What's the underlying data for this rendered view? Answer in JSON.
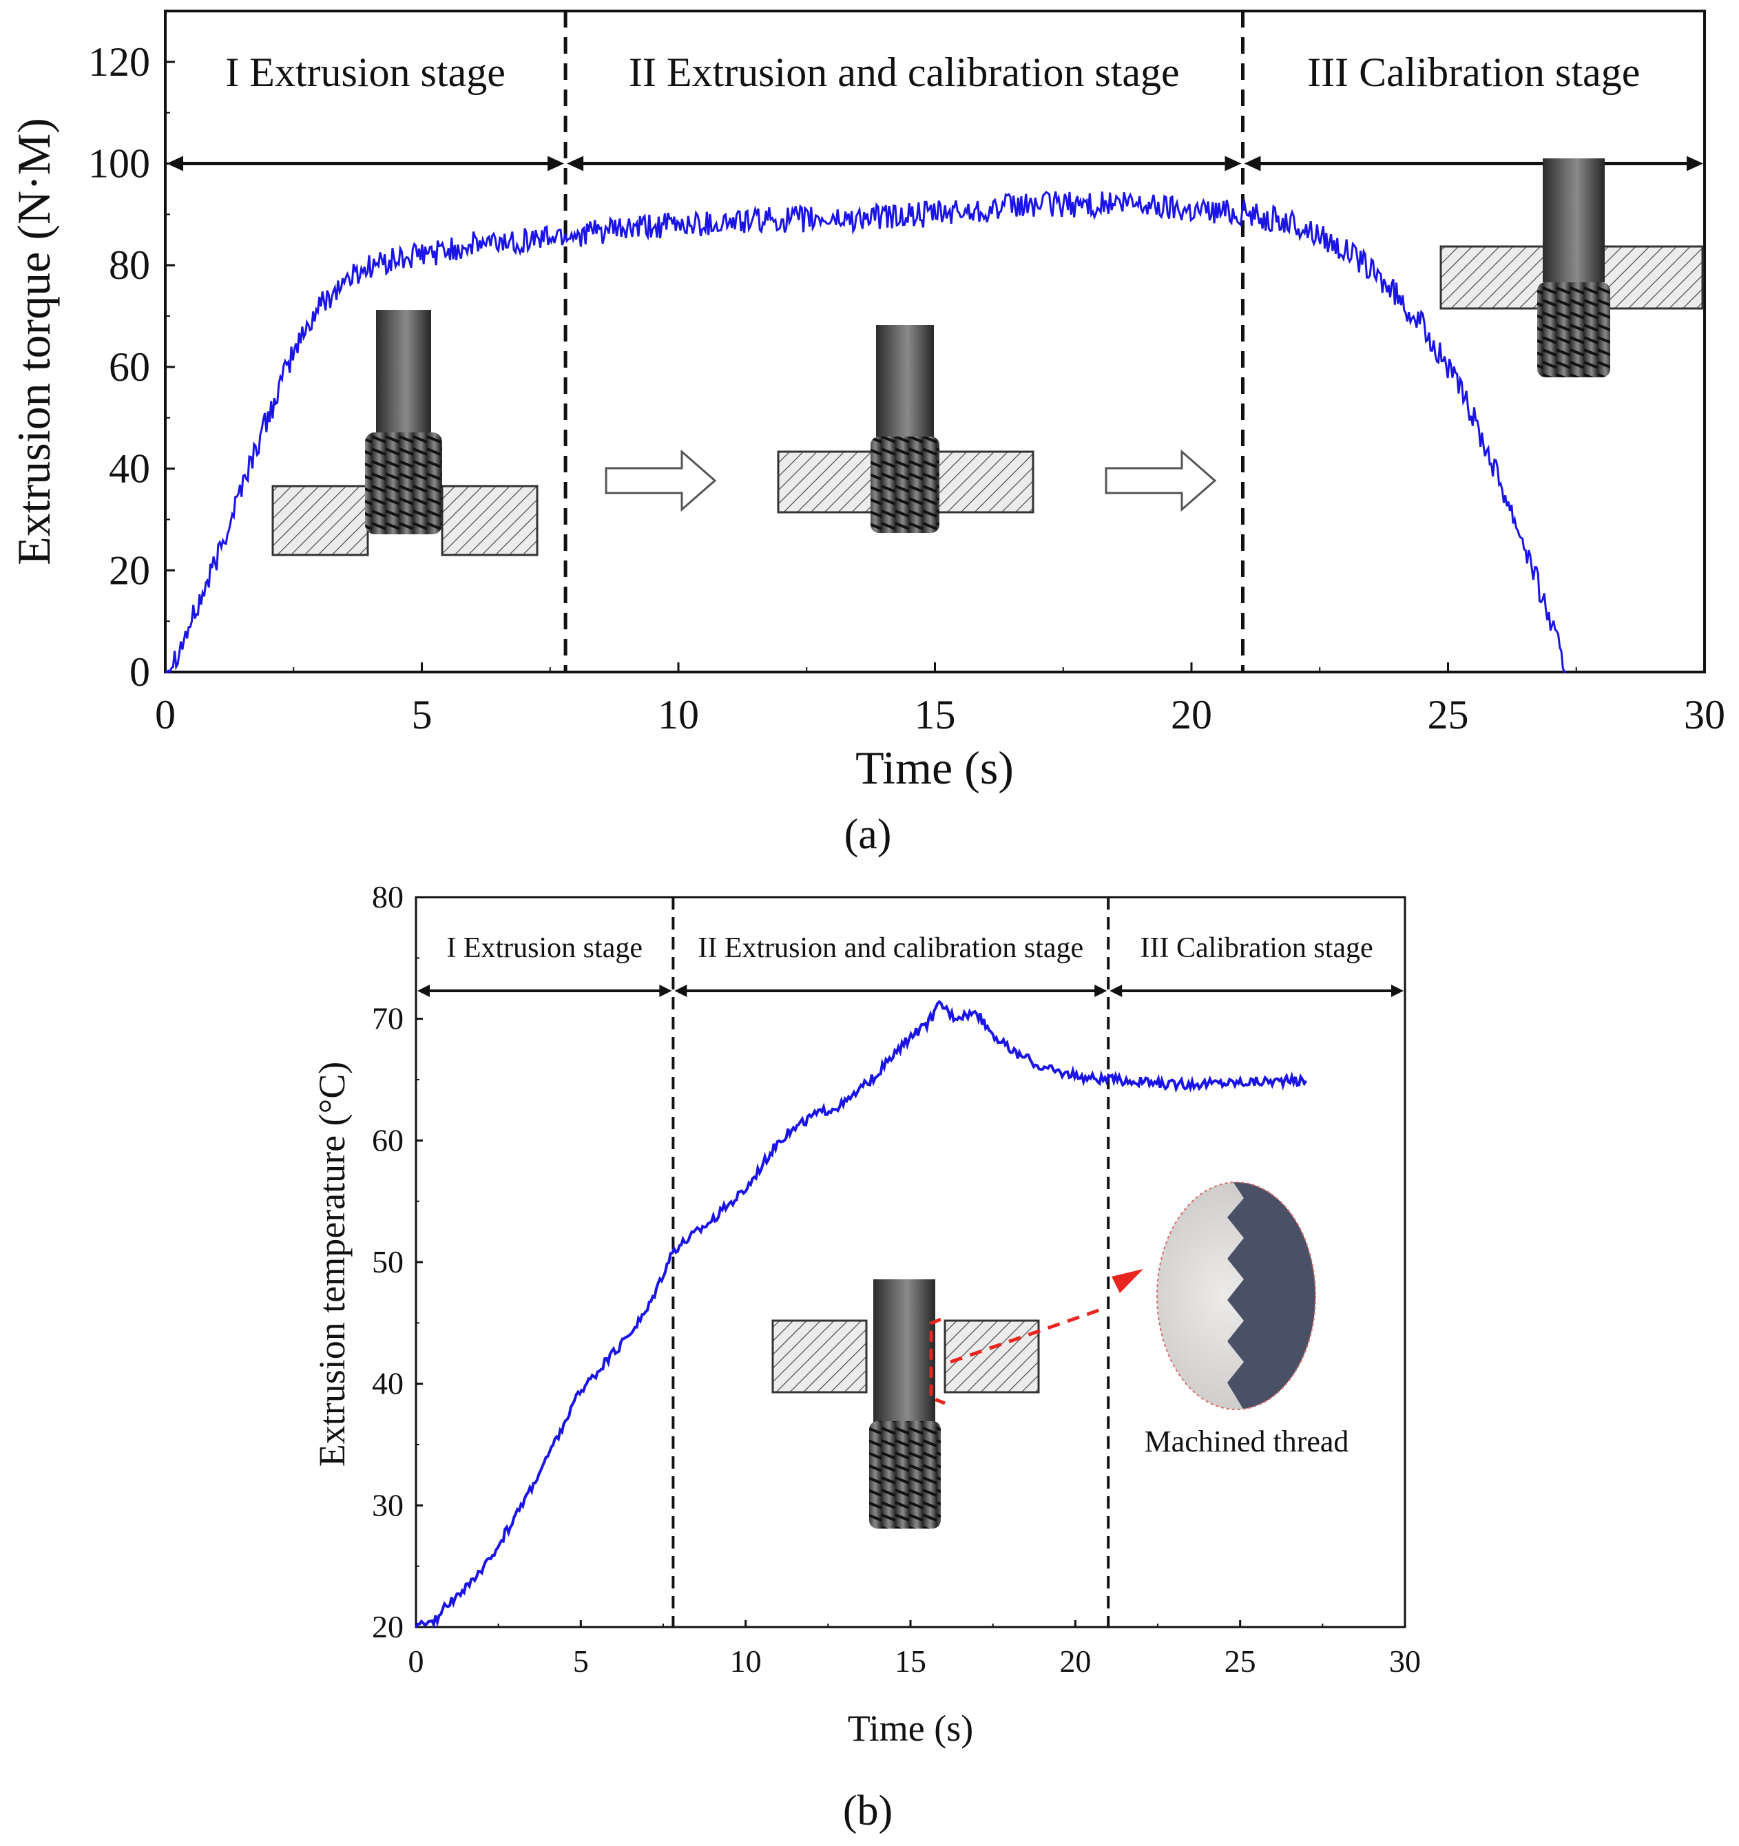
{
  "colors": {
    "series": "#1a14e6",
    "axis": "#111111",
    "arrow_red": "#e8261f"
  },
  "chart_data": [
    {
      "id": "a",
      "type": "line",
      "caption": "(a)",
      "xlabel": "Time (s)",
      "ylabel": "Extrusion torque (N·M)",
      "xlim": [
        0,
        30
      ],
      "ylim": [
        0,
        130
      ],
      "xticks": [
        "0",
        "5",
        "10",
        "15",
        "20",
        "25",
        "30"
      ],
      "yticks": [
        "0",
        "20",
        "40",
        "60",
        "80",
        "100",
        "120"
      ],
      "stage_dividers": [
        7.8,
        21
      ],
      "stage_arrow_y": 100,
      "stages": [
        {
          "label": "I Extrusion stage",
          "x": 3.9
        },
        {
          "label": "II Extrusion and calibration stage",
          "x": 14.4
        },
        {
          "label": "III  Calibration stage",
          "x": 25.5
        }
      ],
      "series": [
        {
          "name": "Extrusion torque",
          "x": [
            0,
            0.3,
            0.6,
            1,
            1.5,
            2,
            2.5,
            3,
            3.5,
            4,
            5,
            6,
            7,
            7.8,
            9,
            10,
            11,
            12,
            13,
            14,
            15,
            16,
            17,
            18,
            19,
            20,
            21,
            22,
            22.5,
            23,
            23.5,
            24,
            24.5,
            25,
            25.5,
            26,
            26.5,
            27,
            27.3
          ],
          "y": [
            0,
            5,
            12,
            22,
            37,
            50,
            63,
            72,
            77,
            80,
            82,
            84,
            85,
            86,
            87,
            88,
            88.5,
            89,
            89,
            89.5,
            90,
            91,
            92,
            92,
            92,
            91,
            90.5,
            88,
            86,
            83,
            79,
            74,
            68,
            60,
            50,
            38,
            25,
            10,
            0
          ],
          "noise": 2.6
        }
      ],
      "insets": [
        "tap-entering-workpiece",
        "tap-through-workpiece",
        "tap-emerging-workpiece",
        "right-arrow",
        "right-arrow"
      ]
    },
    {
      "id": "b",
      "type": "line",
      "caption": "(b)",
      "xlabel": "Time (s)",
      "ylabel": "Extrusion temperature (°C)",
      "xlim": [
        0,
        30
      ],
      "ylim": [
        20,
        80
      ],
      "xticks": [
        "0",
        "5",
        "10",
        "15",
        "20",
        "25",
        "30"
      ],
      "yticks": [
        "20",
        "30",
        "40",
        "50",
        "60",
        "70",
        "80"
      ],
      "stage_dividers": [
        7.8,
        21
      ],
      "stage_arrow_y": 72.3,
      "stages": [
        {
          "label": "I  Extrusion stage",
          "x": 3.9
        },
        {
          "label": "II  Extrusion and calibration stage",
          "x": 14.4
        },
        {
          "label": "III Calibration stage",
          "x": 25.5
        }
      ],
      "series": [
        {
          "name": "Extrusion temperature",
          "x": [
            0,
            0.5,
            1,
            2,
            3,
            4,
            5,
            6,
            7,
            7.8,
            9,
            10,
            11,
            12,
            13,
            14,
            15,
            15.5,
            15.9,
            16.3,
            17,
            17.5,
            18,
            19,
            20,
            21,
            22,
            23,
            24,
            25,
            26,
            27
          ],
          "y": [
            20,
            20.3,
            22,
            24.5,
            29,
            34,
            39.5,
            42.5,
            46,
            51,
            53.5,
            56,
            60,
            62,
            63,
            65.5,
            68.5,
            69.5,
            71.3,
            70.2,
            70.5,
            68.8,
            67.5,
            66,
            65.3,
            65,
            64.8,
            64.6,
            64.7,
            64.8,
            64.9,
            64.9
          ],
          "noise": 0.4
        }
      ],
      "annotations": {
        "machined_thread": "Machined thread"
      },
      "insets": [
        "tap-through-workpiece",
        "thread-closeup"
      ]
    }
  ]
}
